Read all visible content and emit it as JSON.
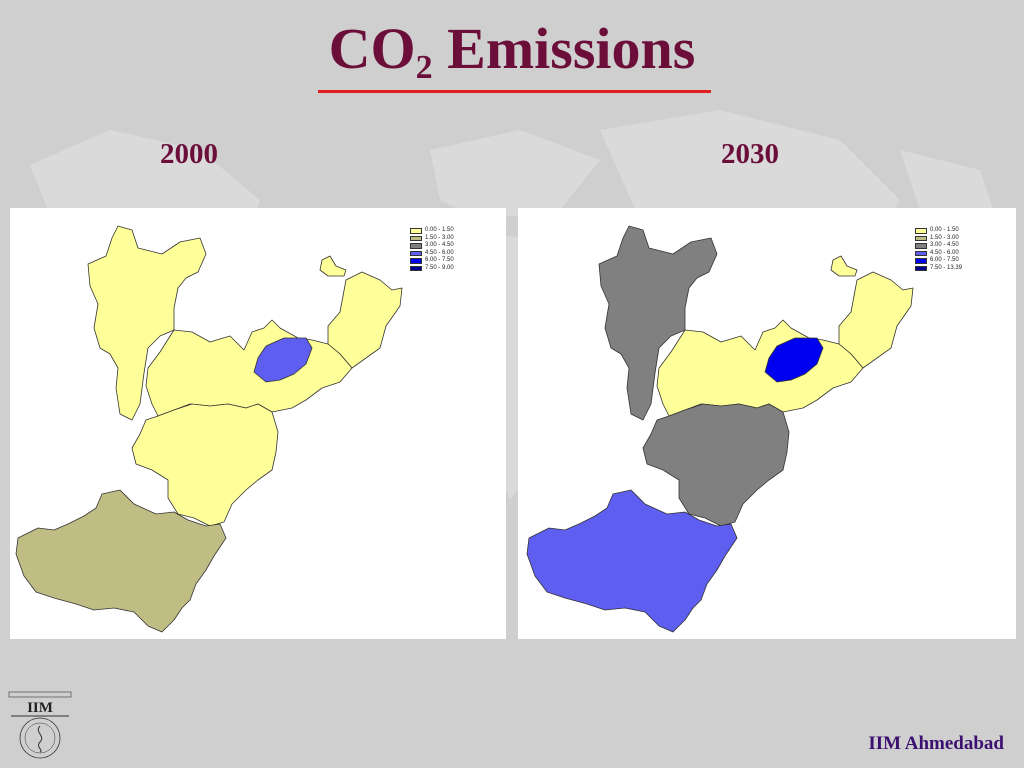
{
  "slide": {
    "title_main": "CO",
    "title_sub": "2",
    "title_rest": " Emissions",
    "footer": "IIM Ahmedabad",
    "logo_text": "IIM"
  },
  "colors": {
    "title": "#6b0f3a",
    "underline": "#e02020",
    "footer": "#3b1070",
    "class_0": "#ffff99",
    "class_1": "#c0bd84",
    "class_2": "#808080",
    "class_3": "#5e5ef0",
    "class_4": "#0000f0",
    "class_5": "#000090"
  },
  "maps": [
    {
      "year": "2000",
      "legend": [
        "0.00 - 1.50",
        "1.50 - 3.00",
        "3.00 - 4.50",
        "4.50 - 6.00",
        "6.00 - 7.50",
        "7.50 - 9.00"
      ],
      "regions": {
        "north": 0,
        "northeast": 0,
        "island": 0,
        "central": 0,
        "central_south": 0,
        "hub": 3,
        "south": 1
      }
    },
    {
      "year": "2030",
      "legend": [
        "0.00 - 1.50",
        "1.50 - 3.00",
        "3.00 - 4.50",
        "4.50 - 6.00",
        "6.00 - 7.50",
        "7.50 - 13.39"
      ],
      "regions": {
        "north": 2,
        "northeast": 0,
        "island": 0,
        "central": 0,
        "central_south": 2,
        "hub": 4,
        "south": 3
      }
    }
  ]
}
